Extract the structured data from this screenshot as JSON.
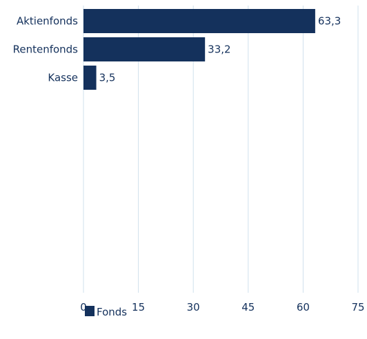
{
  "chart_data": {
    "type": "bar",
    "orientation": "horizontal",
    "title": "",
    "xlabel": "",
    "ylabel": "",
    "categories": [
      "Aktienfonds",
      "Rentenfonds",
      "Kasse"
    ],
    "series": [
      {
        "name": "Fonds",
        "values": [
          63.3,
          33.2,
          3.5
        ],
        "labels": [
          "63,3",
          "33,2",
          "3,5"
        ],
        "color": "#14315c"
      }
    ],
    "xlim": [
      0,
      75
    ],
    "ticks": [
      0,
      15,
      30,
      45,
      60,
      75
    ],
    "tick_labels": [
      "0",
      "15",
      "30",
      "45",
      "60",
      "75"
    ],
    "grid": "vertical",
    "grid_color": "#cfe0ec",
    "legend": "bottom-left",
    "text_color": "#14315c"
  }
}
